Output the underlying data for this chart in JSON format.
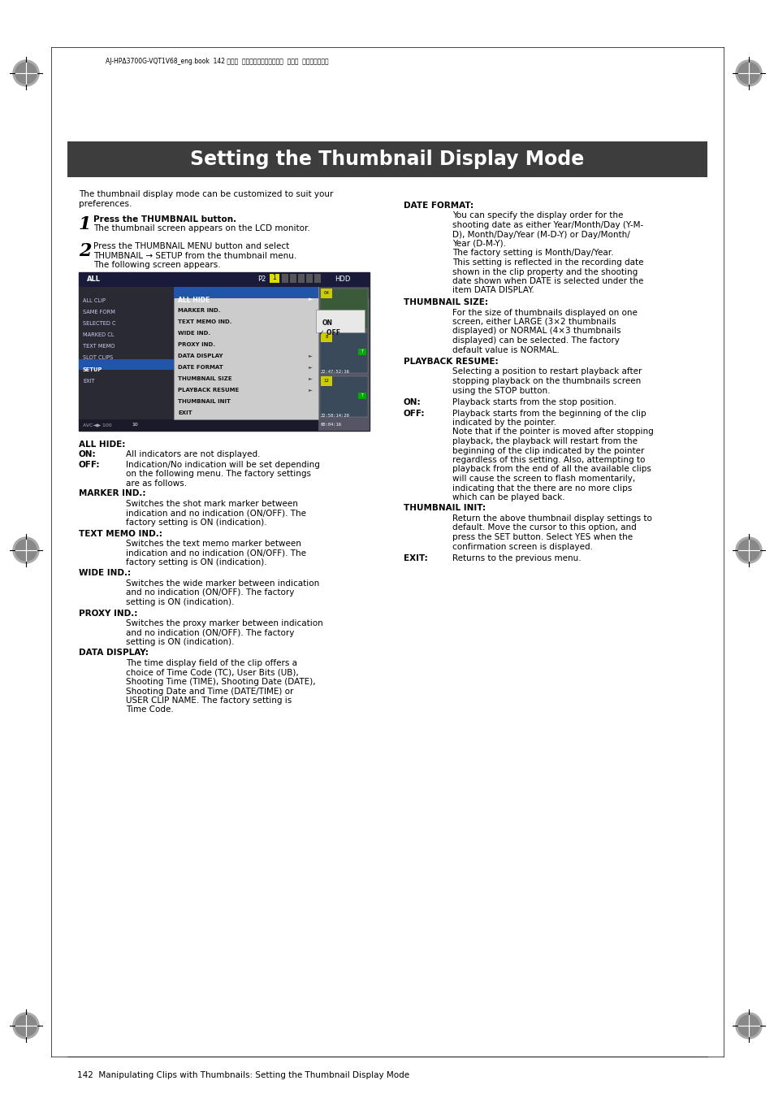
{
  "title": "Setting the Thumbnail Display Mode",
  "title_bg": "#3d3d3d",
  "title_color": "#ffffff",
  "page_bg": "#ffffff",
  "header_text": "AJ-HPΔ3700G-VQT1V68_eng.book  142 ページ  ２００８年１０月１５日  水曜日  午後６時３８分",
  "footer_text": "142  Manipulating Clips with Thumbnails: Setting the Thumbnail Display Mode",
  "intro_text": "The thumbnail display mode can be customized to suit your\npreferences.",
  "step1_num": "1",
  "step1_line1": "Press the THUMBNAIL button.",
  "step1_line2": "The thumbnail screen appears on the LCD monitor.",
  "step2_num": "2",
  "step2_line1": "Press the THUMBNAIL MENU button and select",
  "step2_line2": "THUMBNAIL → SETUP from the thumbnail menu.",
  "step2_line3": "The following screen appears.",
  "left_sections": [
    {
      "heading": "ALL HIDE:",
      "body": null,
      "labels": [
        {
          "label": "ON:",
          "text": "All indicators are not displayed."
        },
        {
          "label": "OFF:",
          "text": "Indication/No indication will be set depending\non the following menu. The factory settings\nare as follows."
        }
      ]
    },
    {
      "heading": "MARKER IND.:",
      "body": "Switches the shot mark marker between\nindication and no indication (ON/OFF). The\nfactory setting is ON (indication).",
      "labels": []
    },
    {
      "heading": "TEXT MEMO IND.:",
      "body": "Switches the text memo marker between\nindication and no indication (ON/OFF). The\nfactory setting is ON (indication).",
      "labels": []
    },
    {
      "heading": "WIDE IND.:",
      "body": "Switches the wide marker between indication\nand no indication (ON/OFF). The factory\nsetting is ON (indication).",
      "labels": []
    },
    {
      "heading": "PROXY IND.:",
      "body": "Switches the proxy marker between indication\nand no indication (ON/OFF). The factory\nsetting is ON (indication).",
      "labels": []
    },
    {
      "heading": "DATA DISPLAY:",
      "body": "The time display field of the clip offers a\nchoice of Time Code (TC), User Bits (UB),\nShooting Time (TIME), Shooting Date (DATE),\nShooting Date and Time (DATE/TIME) or\nUSER CLIP NAME. The factory setting is\nTime Code.",
      "labels": []
    }
  ],
  "right_sections": [
    {
      "heading": "DATE FORMAT:",
      "body": "You can specify the display order for the\nshooting date as either Year/Month/Day (Y-M-\nD), Month/Day/Year (M-D-Y) or Day/Month/\nYear (D-M-Y).\nThe factory setting is Month/Day/Year.\nThis setting is reflected in the recording date\nshown in the clip property and the shooting\ndate shown when DATE is selected under the\nitem DATA DISPLAY.",
      "labels": []
    },
    {
      "heading": "THUMBNAIL SIZE:",
      "body": "For the size of thumbnails displayed on one\nscreen, either LARGE (3×2 thumbnails\ndisplayed) or NORMAL (4×3 thumbnails\ndisplayed) can be selected. The factory\ndefault value is NORMAL.",
      "labels": []
    },
    {
      "heading": "PLAYBACK RESUME:",
      "body": "Selecting a position to restart playback after\nstopping playback on the thumbnails screen\nusing the STOP button.",
      "labels": [
        {
          "label": "ON:",
          "text": "Playback starts from the stop position."
        },
        {
          "label": "OFF:",
          "text": "Playback starts from the beginning of the clip\nindicated by the pointer.\nNote that if the pointer is moved after stopping\nplayback, the playback will restart from the\nbeginning of the clip indicated by the pointer\nregardless of this setting. Also, attempting to\nplayback from the end of all the available clips\nwill cause the screen to flash momentarily,\nindicating that the there are no more clips\nwhich can be played back."
        }
      ]
    },
    {
      "heading": "THUMBNAIL INIT:",
      "body": "Return the above thumbnail display settings to\ndefault. Move the cursor to this option, and\npress the SET button. Select YES when the\nconfirmation screen is displayed.",
      "labels": []
    },
    {
      "heading": null,
      "body": null,
      "labels": [
        {
          "label": "EXIT:",
          "text": "Returns to the previous menu."
        }
      ]
    }
  ]
}
